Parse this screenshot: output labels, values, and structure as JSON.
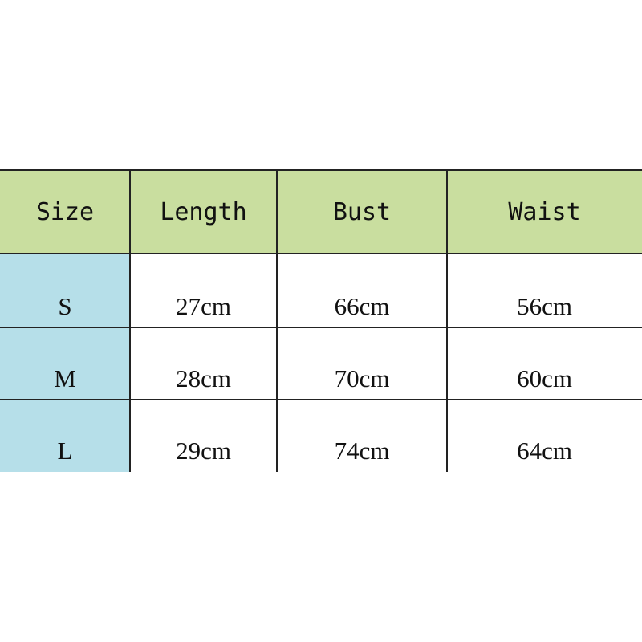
{
  "table": {
    "header": [
      "Size",
      "Length",
      "Bust",
      "Waist"
    ],
    "rows": [
      [
        "S",
        "27cm",
        "66cm",
        "56cm"
      ],
      [
        "M",
        "28cm",
        "70cm",
        "60cm"
      ],
      [
        "L",
        "29cm",
        "74cm",
        "64cm"
      ]
    ]
  }
}
